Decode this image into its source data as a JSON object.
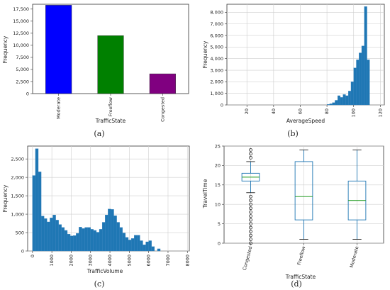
{
  "chart_data": [
    {
      "panel": "(a)",
      "type": "bar",
      "xlabel": "TrafficState",
      "ylabel": "Frequency",
      "categories": [
        "Moderate",
        "Freeflow",
        "Congested"
      ],
      "values": [
        18300,
        12000,
        4100
      ],
      "colors": [
        "#0000ff",
        "#008000",
        "#800080"
      ],
      "ylim": [
        0,
        18500
      ],
      "yticks": [
        0,
        2500,
        5000,
        7500,
        10000,
        12500,
        15000,
        17500
      ],
      "ytick_labels": [
        "0",
        "2,500",
        "5,000",
        "7,500",
        "10,000",
        "12,500",
        "15,000",
        "17,500"
      ],
      "grid": false
    },
    {
      "panel": "(b)",
      "type": "bar",
      "subtype": "histogram",
      "xlabel": "AverageSpeed",
      "ylabel": "Frequency",
      "bin_edges": [
        80,
        82,
        84,
        86,
        88,
        90,
        92,
        94,
        96,
        98,
        100,
        102,
        104,
        106,
        108,
        110,
        112
      ],
      "values": [
        50,
        100,
        200,
        400,
        800,
        650,
        900,
        800,
        1200,
        2000,
        3200,
        3900,
        4500,
        5100,
        8500,
        3900
      ],
      "color": "#1f77b4",
      "xlim": [
        5,
        123
      ],
      "ylim": [
        0,
        8700
      ],
      "xticks": [
        20,
        40,
        60,
        80,
        100,
        120
      ],
      "xtick_labels": [
        "20",
        "40",
        "60",
        "80",
        "100",
        "120"
      ],
      "yticks": [
        0,
        1000,
        2000,
        3000,
        4000,
        5000,
        6000,
        7000,
        8000
      ],
      "ytick_labels": [
        "0",
        "1,000",
        "2,000",
        "3,000",
        "4,000",
        "5,000",
        "6,000",
        "7,000",
        "8,000"
      ],
      "grid": true
    },
    {
      "panel": "(c)",
      "type": "bar",
      "subtype": "histogram",
      "xlabel": "TrafficVolume",
      "ylabel": "Frequency",
      "bin_start": 0,
      "bin_width": 150,
      "values": [
        2050,
        2780,
        2150,
        950,
        880,
        790,
        900,
        980,
        840,
        720,
        640,
        560,
        460,
        410,
        420,
        480,
        650,
        610,
        640,
        640,
        590,
        560,
        510,
        590,
        780,
        980,
        1140,
        1130,
        960,
        780,
        640,
        490,
        370,
        300,
        340,
        430,
        430,
        280,
        170,
        250,
        280,
        120,
        0,
        60
      ],
      "color": "#1f77b4",
      "xlim": [
        -250,
        8100
      ],
      "ylim": [
        0,
        2850
      ],
      "xticks": [
        0,
        1000,
        2000,
        3000,
        4000,
        5000,
        6000,
        7000,
        8000
      ],
      "xtick_labels": [
        "0",
        "1000",
        "2000",
        "3000",
        "4000",
        "5000",
        "6000",
        "7000",
        "8000"
      ],
      "yticks": [
        0,
        500,
        1000,
        1500,
        2000,
        2500
      ],
      "ytick_labels": [
        "0",
        "500",
        "1,000",
        "1,500",
        "2,000",
        "2,500"
      ],
      "grid": true
    },
    {
      "panel": "(d)",
      "type": "box",
      "xlabel": "TrafficState",
      "ylabel": "TravelTime",
      "categories": [
        "Congested",
        "Freeflow",
        "Moderate"
      ],
      "boxes": [
        {
          "whislo": 13,
          "q1": 16,
          "med": 17,
          "q3": 18,
          "whishi": 21,
          "fliers": [
            0,
            1,
            2,
            3,
            4,
            5,
            6,
            7,
            8,
            9,
            10,
            11,
            12,
            22,
            23,
            24
          ]
        },
        {
          "whislo": 1,
          "q1": 6,
          "med": 12,
          "q3": 21,
          "whishi": 24,
          "fliers": []
        },
        {
          "whislo": 1,
          "q1": 6,
          "med": 11,
          "q3": 16,
          "whishi": 24,
          "fliers": []
        }
      ],
      "box_color": "#1f77b4",
      "median_color": "#2ca02c",
      "ylim": [
        0,
        25
      ],
      "yticks": [
        0,
        5,
        10,
        15,
        20,
        25
      ],
      "ytick_labels": [
        "0",
        "5",
        "10",
        "15",
        "20",
        "25"
      ],
      "grid": true
    }
  ]
}
